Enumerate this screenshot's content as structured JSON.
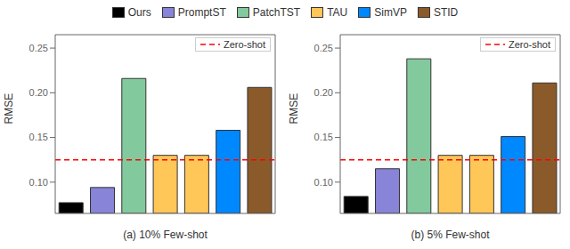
{
  "chart_data": [
    {
      "type": "bar",
      "x_label": "(a) 10% Few-shot",
      "y_label": "RMSE",
      "legend": "top",
      "categories": [
        null,
        null,
        null,
        null,
        null,
        null,
        null
      ],
      "series": [
        {
          "name": "Ours",
          "color": "black",
          "values": [
            0.077,
            null,
            null,
            null,
            null,
            null,
            null
          ]
        },
        {
          "name": "PromptST",
          "color": "#8884d8",
          "values": [
            null,
            0.094,
            null,
            null,
            null,
            null,
            null
          ]
        },
        {
          "name": "PatchTST",
          "color": "#82ca9d",
          "values": [
            null,
            null,
            0.216,
            null,
            null,
            null,
            null
          ]
        },
        {
          "name": "TAU",
          "color": "#ffc658",
          "values": [
            null,
            null,
            null,
            0.13,
            0.13,
            null,
            null
          ]
        },
        {
          "name": "SimVP",
          "color": "#0088fe",
          "values": [
            null,
            null,
            null,
            null,
            null,
            0.158,
            null
          ]
        },
        {
          "name": "STID",
          "color": "#8b5a2b",
          "values": [
            null,
            null,
            null,
            null,
            null,
            null,
            0.206
          ]
        }
      ],
      "reference_lines": [
        {
          "name": "Zero-shot",
          "value": 0.125,
          "color": "red",
          "line_style": "dashed"
        }
      ],
      "ylim": [
        0.065,
        0.265
      ],
      "yticks": [
        {
          "value": 0.1,
          "label": "0.10"
        },
        0.15,
        {
          "value": 0.2,
          "label": "0.20"
        },
        0.25
      ],
      "grid": false,
      "tick_labels": "y"
    },
    {
      "type": "bar",
      "x_label": "(b) 5% Few-shot",
      "y_label": "RMSE",
      "categories": [
        null,
        null,
        null,
        null,
        null,
        null,
        null
      ],
      "series": [
        {
          "name": "Ours",
          "color": "black",
          "values": [
            0.084,
            null,
            null,
            null,
            null,
            null,
            null
          ]
        },
        {
          "name": "PromptST",
          "color": "#8884d8",
          "values": [
            null,
            0.115,
            null,
            null,
            null,
            null,
            null
          ]
        },
        {
          "name": "PatchTST",
          "color": "#82ca9d",
          "values": [
            null,
            null,
            0.238,
            null,
            null,
            null,
            null
          ]
        },
        {
          "name": "TAU",
          "color": "#ffc658",
          "values": [
            null,
            null,
            null,
            0.13,
            0.13,
            null,
            null
          ]
        },
        {
          "name": "SimVP",
          "color": "#0088fe",
          "values": [
            null,
            null,
            null,
            null,
            null,
            0.151,
            null
          ]
        },
        {
          "name": "STID",
          "color": "#8b5a2b",
          "values": [
            null,
            null,
            null,
            null,
            null,
            null,
            0.211
          ]
        }
      ],
      "reference_lines": [
        {
          "name": "Zero-shot",
          "value": 0.125,
          "color": "red",
          "line_style": "dashed"
        }
      ],
      "ylim": [
        0.065,
        0.265
      ],
      "yticks": [
        {
          "value": 0.1,
          "label": "0.10"
        },
        0.15,
        {
          "value": 0.2,
          "label": "0.20"
        },
        0.25
      ],
      "grid": false,
      "tick_labels": "y"
    }
  ]
}
